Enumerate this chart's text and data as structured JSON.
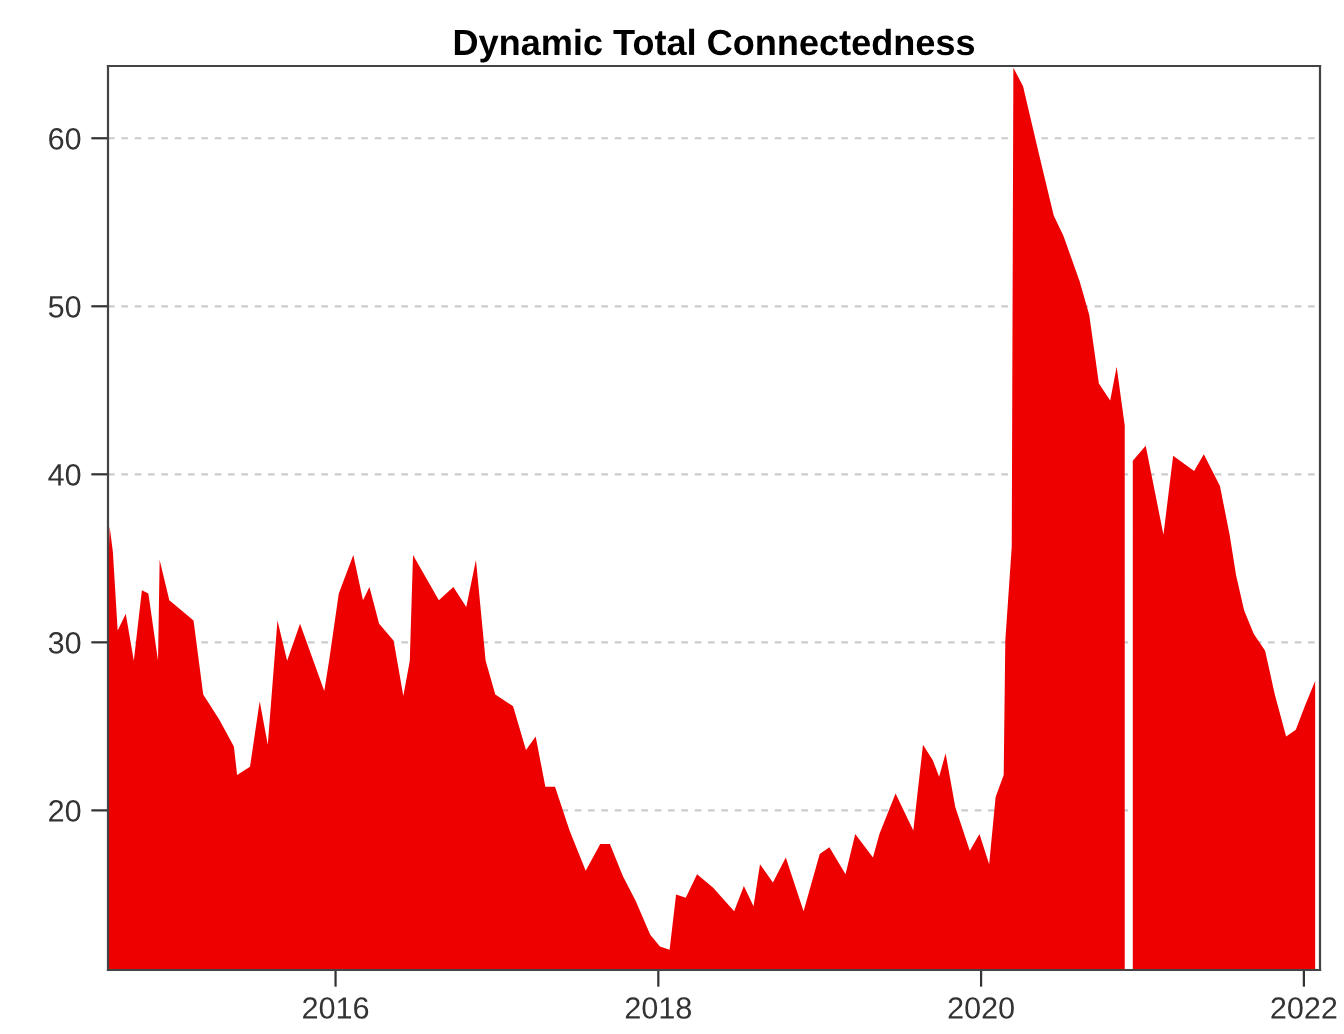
{
  "chart_data": {
    "type": "area",
    "title": "Dynamic Total Connectedness",
    "x": [
      2014.59,
      2014.6,
      2014.62,
      2014.65,
      2014.7,
      2014.75,
      2014.8,
      2014.84,
      2014.9,
      2014.91,
      2014.97,
      2015.12,
      2015.18,
      2015.28,
      2015.37,
      2015.39,
      2015.47,
      2015.53,
      2015.58,
      2015.64,
      2015.7,
      2015.78,
      2015.93,
      2015.96,
      2016.02,
      2016.11,
      2016.17,
      2016.21,
      2016.27,
      2016.36,
      2016.42,
      2016.46,
      2016.48,
      2016.64,
      2016.73,
      2016.81,
      2016.87,
      2016.93,
      2016.99,
      2017.1,
      2017.18,
      2017.24,
      2017.3,
      2017.36,
      2017.45,
      2017.55,
      2017.64,
      2017.7,
      2017.78,
      2017.86,
      2017.95,
      2018.01,
      2018.07,
      2018.11,
      2018.17,
      2018.24,
      2018.34,
      2018.47,
      2018.53,
      2018.59,
      2018.63,
      2018.71,
      2018.79,
      2018.9,
      2019.0,
      2019.06,
      2019.16,
      2019.22,
      2019.33,
      2019.37,
      2019.47,
      2019.58,
      2019.64,
      2019.7,
      2019.74,
      2019.78,
      2019.84,
      2019.93,
      2019.99,
      2020.05,
      2020.09,
      2020.14,
      2020.15,
      2020.19,
      2020.2,
      2020.26,
      2020.36,
      2020.45,
      2020.51,
      2020.61,
      2020.67,
      2020.73,
      2020.8,
      2020.84,
      2020.89,
      2020.91,
      2020.94,
      2021.02,
      2021.13,
      2021.19,
      2021.32,
      2021.38,
      2021.48,
      2021.54,
      2021.58,
      2021.63,
      2021.69,
      2021.76,
      2021.82,
      2021.89,
      2021.95,
      2022.01,
      2022.07
    ],
    "series": [
      {
        "color": "#ee0000",
        "values": [
          33.7,
          36.9,
          35.4,
          30.7,
          31.7,
          28.9,
          33.1,
          32.9,
          28.9,
          34.9,
          32.5,
          31.3,
          26.9,
          25.4,
          23.8,
          22.1,
          22.6,
          26.5,
          23.9,
          31.3,
          28.9,
          31.1,
          27.1,
          28.9,
          32.9,
          35.2,
          32.5,
          33.3,
          31.1,
          30.1,
          26.8,
          28.9,
          35.2,
          32.5,
          33.3,
          32.1,
          34.9,
          28.9,
          26.9,
          26.2,
          23.6,
          24.4,
          21.4,
          21.4,
          18.8,
          16.4,
          18.0,
          18.0,
          16.1,
          14.6,
          12.6,
          11.9,
          11.7,
          15.0,
          14.8,
          16.2,
          15.4,
          14.0,
          15.5,
          14.3,
          16.8,
          15.7,
          17.2,
          14.0,
          17.4,
          17.8,
          16.2,
          18.6,
          17.2,
          18.6,
          21.0,
          18.8,
          23.9,
          23.0,
          22.0,
          23.4,
          20.2,
          17.6,
          18.6,
          16.8,
          20.8,
          22.1,
          30.1,
          35.7,
          64.2,
          63.1,
          59.0,
          55.4,
          54.2,
          51.5,
          49.5,
          45.4,
          44.4,
          46.4,
          42.9,
          null,
          40.8,
          41.7,
          36.4,
          41.1,
          40.2,
          41.2,
          39.3,
          36.4,
          34.0,
          31.9,
          30.5,
          29.5,
          26.9,
          24.4,
          24.8,
          26.3,
          27.7
        ]
      }
    ],
    "xlim": [
      2014.59,
      2022.1
    ],
    "xticks": [
      2016,
      2018,
      2020,
      2022
    ],
    "ylim": [
      10.5,
      64.3
    ],
    "yticks": [
      20,
      30,
      40,
      50,
      60
    ],
    "grid": "y"
  }
}
